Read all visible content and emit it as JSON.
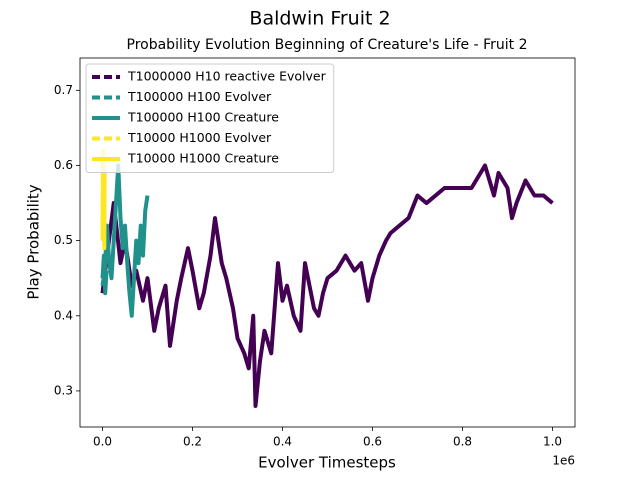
{
  "chart_data": {
    "type": "line",
    "title": "Baldwin Fruit 2",
    "subtitle": "Probability Evolution Beginning of Creature's Life - Fruit 2",
    "x_label": "Evolver Timesteps",
    "y_label": "Play Probability",
    "x_offset_label": "1e6",
    "xlim": [
      -50000,
      1050000
    ],
    "ylim": [
      0.252,
      0.743
    ],
    "xticks": [
      {
        "value": 0,
        "label": "0.0"
      },
      {
        "value": 200000,
        "label": "0.2"
      },
      {
        "value": 400000,
        "label": "0.4"
      },
      {
        "value": 600000,
        "label": "0.6"
      },
      {
        "value": 800000,
        "label": "0.8"
      },
      {
        "value": 1000000,
        "label": "1.0"
      }
    ],
    "yticks": [
      0.3,
      0.4,
      0.5,
      0.6,
      0.7
    ],
    "legend": "upper left",
    "series": [
      {
        "name": "T1000000 H10 reactive Evolver",
        "color": "#440154",
        "linestyle": "dashed",
        "x": [
          0,
          10000,
          25000,
          40000,
          50000,
          65000,
          75000,
          90000,
          100000,
          115000,
          125000,
          140000,
          150000,
          165000,
          175000,
          190000,
          200000,
          215000,
          225000,
          240000,
          250000,
          265000,
          275000,
          290000,
          300000,
          315000,
          325000,
          335000,
          340000,
          350000,
          360000,
          375000,
          390000,
          400000,
          410000,
          425000,
          440000,
          450000,
          460000,
          470000,
          480000,
          490000,
          500000,
          520000,
          540000,
          560000,
          575000,
          590000,
          600000,
          615000,
          630000,
          640000,
          660000,
          680000,
          700000,
          720000,
          740000,
          760000,
          780000,
          800000,
          820000,
          840000,
          850000,
          860000,
          870000,
          880000,
          900000,
          910000,
          920000,
          940000,
          960000,
          980000,
          1000000
        ],
        "values": [
          0.43,
          0.48,
          0.55,
          0.47,
          0.5,
          0.44,
          0.46,
          0.42,
          0.45,
          0.38,
          0.41,
          0.44,
          0.36,
          0.42,
          0.45,
          0.49,
          0.46,
          0.41,
          0.43,
          0.48,
          0.53,
          0.47,
          0.45,
          0.41,
          0.37,
          0.35,
          0.33,
          0.4,
          0.28,
          0.34,
          0.38,
          0.35,
          0.47,
          0.42,
          0.44,
          0.4,
          0.38,
          0.47,
          0.44,
          0.41,
          0.4,
          0.43,
          0.45,
          0.46,
          0.48,
          0.46,
          0.47,
          0.42,
          0.45,
          0.48,
          0.5,
          0.51,
          0.52,
          0.53,
          0.56,
          0.55,
          0.56,
          0.57,
          0.57,
          0.57,
          0.57,
          0.59,
          0.6,
          0.58,
          0.56,
          0.59,
          0.57,
          0.53,
          0.55,
          0.58,
          0.56,
          0.56,
          0.55
        ]
      },
      {
        "name": "T100000 H100 Evolver",
        "color": "#21918c",
        "linestyle": "dashed",
        "x": [
          0,
          5000,
          10000,
          15000,
          20000,
          25000,
          30000,
          35000,
          40000,
          45000,
          50000,
          55000,
          60000,
          65000,
          70000,
          75000,
          80000,
          85000,
          90000,
          95000,
          100000
        ],
        "values": [
          0.44,
          0.46,
          0.52,
          0.47,
          0.45,
          0.5,
          0.55,
          0.6,
          0.53,
          0.49,
          0.52,
          0.47,
          0.43,
          0.4,
          0.45,
          0.5,
          0.47,
          0.52,
          0.48,
          0.54,
          0.56
        ]
      },
      {
        "name": "T100000 H100 Creature",
        "color": "#21918c",
        "linestyle": "solid",
        "x": [
          0,
          3000,
          6000,
          9000
        ],
        "values": [
          0.45,
          0.48,
          0.43,
          0.46
        ]
      },
      {
        "name": "T10000 H1000 Evolver",
        "color": "#fde725",
        "linestyle": "dashed",
        "x": [
          0,
          1000,
          2000,
          3000,
          4000,
          5000
        ],
        "values": [
          0.5,
          0.62,
          0.55,
          0.58,
          0.49,
          0.6
        ]
      },
      {
        "name": "T10000 H1000 Creature",
        "color": "#fde725",
        "linestyle": "solid",
        "x": [
          0,
          1500,
          3000,
          4500
        ],
        "values": [
          0.52,
          0.58,
          0.5,
          0.56
        ]
      }
    ]
  }
}
